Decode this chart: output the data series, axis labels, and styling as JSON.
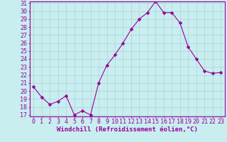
{
  "x": [
    0,
    1,
    2,
    3,
    4,
    5,
    6,
    7,
    8,
    9,
    10,
    11,
    12,
    13,
    14,
    15,
    16,
    17,
    18,
    19,
    20,
    21,
    22,
    23
  ],
  "y": [
    20.5,
    19.2,
    18.3,
    18.7,
    19.4,
    17.0,
    17.5,
    17.0,
    21.0,
    23.2,
    24.5,
    26.0,
    27.7,
    29.0,
    29.8,
    31.2,
    29.8,
    29.8,
    28.5,
    25.5,
    24.0,
    22.5,
    22.2,
    22.3
  ],
  "line_color": "#990099",
  "marker": "D",
  "marker_size": 2.5,
  "background_color": "#c8eef0",
  "grid_color": "#b0d0d8",
  "xlabel": "Windchill (Refroidissement éolien,°C)",
  "ylim_min": 17,
  "ylim_max": 31,
  "xlim_min": -0.5,
  "xlim_max": 23.5,
  "yticks": [
    17,
    18,
    19,
    20,
    21,
    22,
    23,
    24,
    25,
    26,
    27,
    28,
    29,
    30,
    31
  ],
  "xticks": [
    0,
    1,
    2,
    3,
    4,
    5,
    6,
    7,
    8,
    9,
    10,
    11,
    12,
    13,
    14,
    15,
    16,
    17,
    18,
    19,
    20,
    21,
    22,
    23
  ],
  "xlabel_fontsize": 6.5,
  "tick_fontsize": 6,
  "tick_color": "#990099",
  "spine_color": "#990099",
  "linewidth": 0.8
}
